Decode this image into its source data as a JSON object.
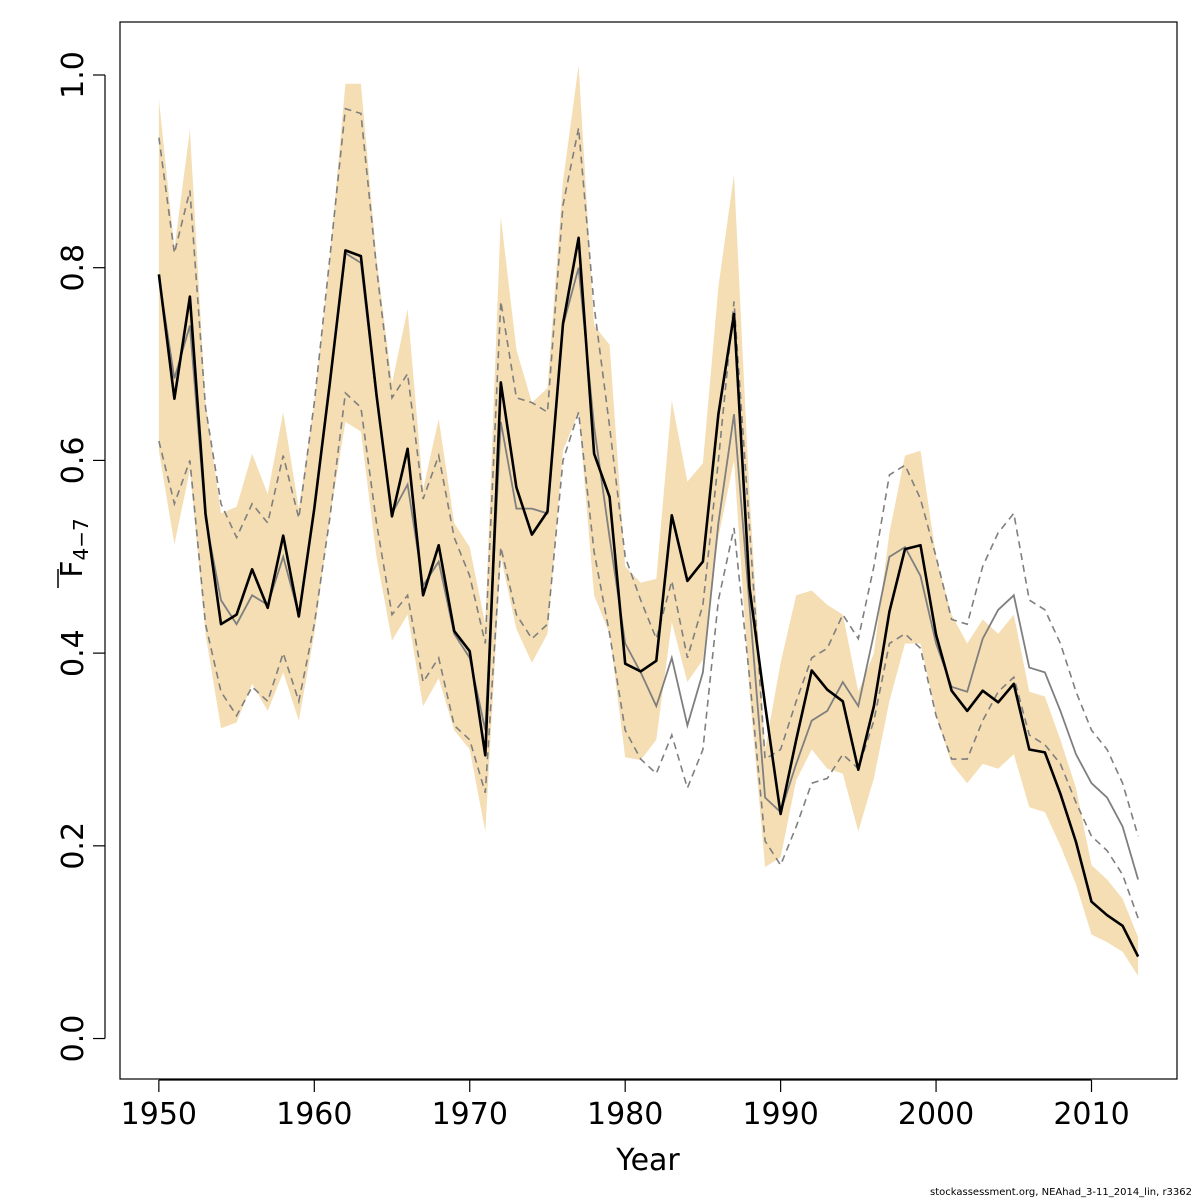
{
  "chart_data": {
    "type": "line",
    "xlabel": "Year",
    "ylabel_main": "F",
    "ylabel_sub": "4−7",
    "xlim": [
      1947.5,
      2015.5
    ],
    "ylim": [
      -0.042,
      1.055
    ],
    "x_ticks": [
      1950,
      1960,
      1970,
      1980,
      1990,
      2000,
      2010
    ],
    "y_ticks": [
      0.0,
      0.2,
      0.4,
      0.6,
      0.8,
      1.0
    ],
    "y_tick_labels": [
      "0.0",
      "0.2",
      "0.4",
      "0.6",
      "0.8",
      "1.0"
    ],
    "colors": {
      "band": "#f5deb3",
      "main": "#000000",
      "retro": "#7f7f7f",
      "retro_ci": "#7f7f7f"
    },
    "years": [
      1950,
      1951,
      1952,
      1953,
      1954,
      1955,
      1956,
      1957,
      1958,
      1959,
      1960,
      1961,
      1962,
      1963,
      1964,
      1965,
      1966,
      1967,
      1968,
      1969,
      1970,
      1971,
      1972,
      1973,
      1974,
      1975,
      1976,
      1977,
      1978,
      1979,
      1980,
      1981,
      1982,
      1983,
      1984,
      1985,
      1986,
      1987,
      1988,
      1989,
      1990,
      1991,
      1992,
      1993,
      1994,
      1995,
      1996,
      1997,
      1998,
      1999,
      2000,
      2001,
      2002,
      2003,
      2004,
      2005,
      2006,
      2007,
      2008,
      2009,
      2010,
      2011,
      2012,
      2013
    ],
    "series": [
      {
        "name": "band_upper",
        "values": [
          0.975,
          0.82,
          0.943,
          0.66,
          0.545,
          0.552,
          0.607,
          0.565,
          0.65,
          0.55,
          0.66,
          0.81,
          0.991,
          0.991,
          0.81,
          0.68,
          0.757,
          0.57,
          0.643,
          0.535,
          0.51,
          0.43,
          0.853,
          0.715,
          0.66,
          0.675,
          0.89,
          1.01,
          0.74,
          0.72,
          0.49,
          0.473,
          0.477,
          0.662,
          0.578,
          0.597,
          0.78,
          0.897,
          0.565,
          0.3,
          0.39,
          0.46,
          0.465,
          0.45,
          0.44,
          0.36,
          0.4,
          0.525,
          0.605,
          0.61,
          0.5,
          0.44,
          0.41,
          0.435,
          0.42,
          0.44,
          0.36,
          0.355,
          0.31,
          0.26,
          0.18,
          0.165,
          0.145,
          0.105
        ]
      },
      {
        "name": "band_lower",
        "values": [
          0.61,
          0.513,
          0.59,
          0.42,
          0.322,
          0.328,
          0.368,
          0.34,
          0.38,
          0.33,
          0.42,
          0.54,
          0.64,
          0.63,
          0.5,
          0.413,
          0.44,
          0.345,
          0.374,
          0.32,
          0.3,
          0.215,
          0.5,
          0.425,
          0.39,
          0.42,
          0.61,
          0.65,
          0.46,
          0.42,
          0.292,
          0.289,
          0.31,
          0.432,
          0.37,
          0.393,
          0.52,
          0.6,
          0.36,
          0.178,
          0.188,
          0.268,
          0.3,
          0.28,
          0.275,
          0.215,
          0.27,
          0.35,
          0.41,
          0.41,
          0.335,
          0.285,
          0.265,
          0.285,
          0.28,
          0.295,
          0.24,
          0.235,
          0.2,
          0.16,
          0.108,
          0.1,
          0.09,
          0.065
        ]
      },
      {
        "name": "retro_ci_upper",
        "values": [
          0.935,
          0.815,
          0.88,
          0.655,
          0.555,
          0.52,
          0.555,
          0.535,
          0.605,
          0.54,
          0.66,
          0.81,
          0.965,
          0.96,
          0.8,
          0.665,
          0.69,
          0.56,
          0.605,
          0.52,
          0.48,
          0.41,
          0.765,
          0.665,
          0.66,
          0.65,
          0.865,
          0.945,
          0.76,
          0.635,
          0.5,
          0.455,
          0.415,
          0.475,
          0.395,
          0.45,
          0.6,
          0.765,
          0.53,
          0.29,
          0.3,
          0.35,
          0.395,
          0.405,
          0.44,
          0.415,
          0.49,
          0.585,
          0.595,
          0.56,
          0.5,
          0.435,
          0.43,
          0.49,
          0.525,
          0.545,
          0.455,
          0.445,
          0.41,
          0.36,
          0.32,
          0.3,
          0.265,
          0.21
        ]
      },
      {
        "name": "retro_ci_lower",
        "values": [
          0.62,
          0.555,
          0.6,
          0.43,
          0.36,
          0.335,
          0.365,
          0.35,
          0.4,
          0.35,
          0.43,
          0.54,
          0.67,
          0.655,
          0.535,
          0.44,
          0.46,
          0.37,
          0.395,
          0.325,
          0.31,
          0.255,
          0.51,
          0.44,
          0.415,
          0.43,
          0.6,
          0.65,
          0.505,
          0.42,
          0.32,
          0.29,
          0.275,
          0.315,
          0.26,
          0.3,
          0.455,
          0.53,
          0.375,
          0.205,
          0.18,
          0.22,
          0.265,
          0.27,
          0.295,
          0.28,
          0.33,
          0.41,
          0.42,
          0.405,
          0.335,
          0.29,
          0.29,
          0.33,
          0.36,
          0.375,
          0.315,
          0.305,
          0.285,
          0.245,
          0.21,
          0.195,
          0.17,
          0.125
        ]
      },
      {
        "name": "retro",
        "values": [
          0.79,
          0.685,
          0.74,
          0.54,
          0.455,
          0.43,
          0.46,
          0.45,
          0.5,
          0.44,
          0.55,
          0.68,
          0.815,
          0.805,
          0.665,
          0.545,
          0.575,
          0.47,
          0.495,
          0.42,
          0.395,
          0.32,
          0.64,
          0.55,
          0.55,
          0.545,
          0.74,
          0.8,
          0.635,
          0.52,
          0.41,
          0.38,
          0.345,
          0.395,
          0.325,
          0.38,
          0.535,
          0.648,
          0.45,
          0.25,
          0.235,
          0.285,
          0.33,
          0.34,
          0.37,
          0.345,
          0.42,
          0.5,
          0.51,
          0.48,
          0.41,
          0.365,
          0.36,
          0.415,
          0.445,
          0.46,
          0.385,
          0.38,
          0.34,
          0.295,
          0.265,
          0.25,
          0.22,
          0.165
        ]
      },
      {
        "name": "estimate",
        "values": [
          0.793,
          0.664,
          0.77,
          0.545,
          0.43,
          0.44,
          0.487,
          0.447,
          0.522,
          0.438,
          0.55,
          0.68,
          0.818,
          0.812,
          0.668,
          0.542,
          0.612,
          0.46,
          0.512,
          0.423,
          0.402,
          0.294,
          0.681,
          0.572,
          0.523,
          0.547,
          0.742,
          0.831,
          0.607,
          0.562,
          0.389,
          0.381,
          0.392,
          0.543,
          0.475,
          0.495,
          0.648,
          0.752,
          0.468,
          0.346,
          0.233,
          0.31,
          0.382,
          0.362,
          0.35,
          0.279,
          0.345,
          0.443,
          0.508,
          0.512,
          0.419,
          0.361,
          0.34,
          0.361,
          0.349,
          0.368,
          0.3,
          0.297,
          0.254,
          0.204,
          0.142,
          0.128,
          0.117,
          0.085
        ]
      }
    ]
  },
  "footnote": "stockassessment.org, NEAhad_3-11_2014_lin, r3362"
}
